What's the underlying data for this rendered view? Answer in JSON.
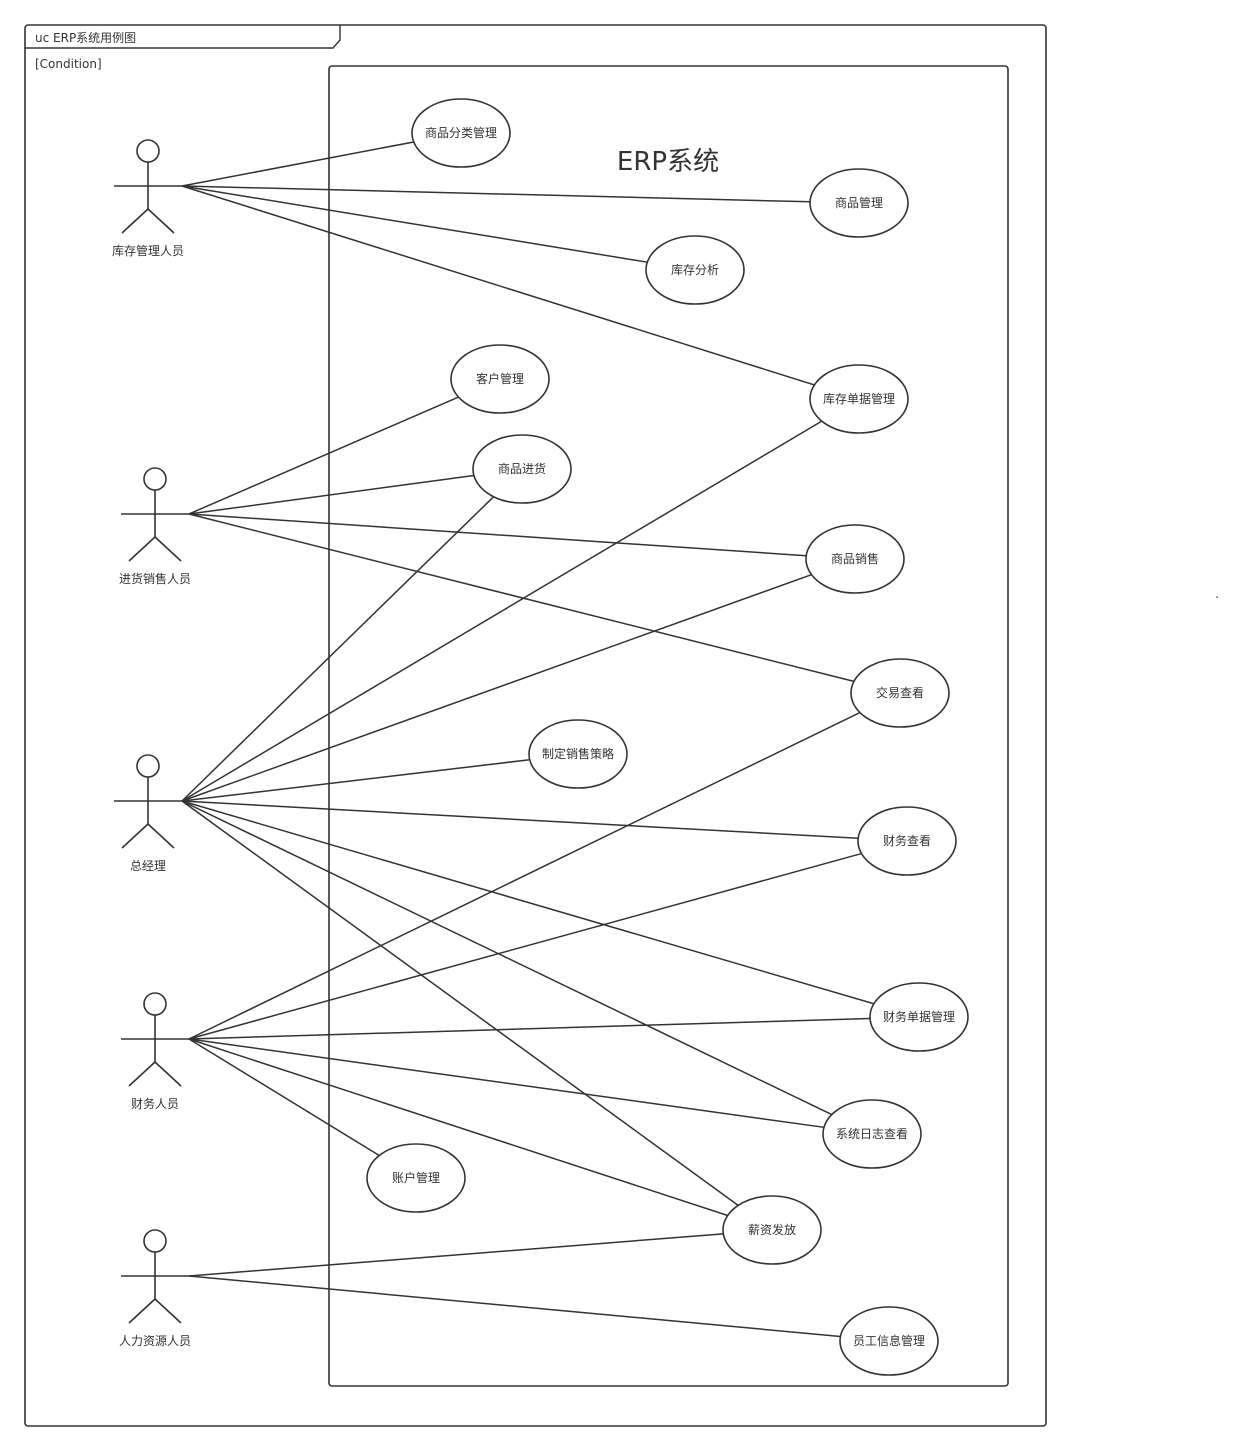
{
  "diagram": {
    "frame_label": "uc ERP系统用例图",
    "condition": "[Condition]",
    "system_title": "ERP系统",
    "stray_mark": "."
  },
  "actors": [
    {
      "id": "inventory_manager",
      "label": "库存管理人员"
    },
    {
      "id": "purchase_sales",
      "label": "进货销售人员"
    },
    {
      "id": "general_manager",
      "label": "总经理"
    },
    {
      "id": "finance",
      "label": "财务人员"
    },
    {
      "id": "hr",
      "label": "人力资源人员"
    }
  ],
  "use_cases": [
    {
      "id": "category_mgmt",
      "label": "商品分类管理"
    },
    {
      "id": "product_mgmt",
      "label": "商品管理"
    },
    {
      "id": "inventory_analysis",
      "label": "库存分析"
    },
    {
      "id": "customer_mgmt",
      "label": "客户管理"
    },
    {
      "id": "inventory_doc_mgmt",
      "label": "库存单据管理"
    },
    {
      "id": "purchase",
      "label": "商品进货"
    },
    {
      "id": "sales",
      "label": "商品销售"
    },
    {
      "id": "transaction_view",
      "label": "交易查看"
    },
    {
      "id": "sales_strategy",
      "label": "制定销售策略"
    },
    {
      "id": "finance_view",
      "label": "财务查看"
    },
    {
      "id": "finance_doc_mgmt",
      "label": "财务单据管理"
    },
    {
      "id": "system_log_view",
      "label": "系统日志查看"
    },
    {
      "id": "account_mgmt",
      "label": "账户管理"
    },
    {
      "id": "salary_payment",
      "label": "薪资发放"
    },
    {
      "id": "employee_info_mgmt",
      "label": "员工信息管理"
    }
  ],
  "associations": [
    {
      "actor": "inventory_manager",
      "use_case": "category_mgmt"
    },
    {
      "actor": "inventory_manager",
      "use_case": "product_mgmt"
    },
    {
      "actor": "inventory_manager",
      "use_case": "inventory_analysis"
    },
    {
      "actor": "inventory_manager",
      "use_case": "inventory_doc_mgmt"
    },
    {
      "actor": "purchase_sales",
      "use_case": "customer_mgmt"
    },
    {
      "actor": "purchase_sales",
      "use_case": "purchase"
    },
    {
      "actor": "purchase_sales",
      "use_case": "sales"
    },
    {
      "actor": "purchase_sales",
      "use_case": "transaction_view"
    },
    {
      "actor": "general_manager",
      "use_case": "purchase"
    },
    {
      "actor": "general_manager",
      "use_case": "inventory_doc_mgmt"
    },
    {
      "actor": "general_manager",
      "use_case": "sales"
    },
    {
      "actor": "general_manager",
      "use_case": "sales_strategy"
    },
    {
      "actor": "general_manager",
      "use_case": "finance_view"
    },
    {
      "actor": "general_manager",
      "use_case": "finance_doc_mgmt"
    },
    {
      "actor": "general_manager",
      "use_case": "system_log_view"
    },
    {
      "actor": "general_manager",
      "use_case": "salary_payment"
    },
    {
      "actor": "finance",
      "use_case": "transaction_view"
    },
    {
      "actor": "finance",
      "use_case": "finance_view"
    },
    {
      "actor": "finance",
      "use_case": "finance_doc_mgmt"
    },
    {
      "actor": "finance",
      "use_case": "system_log_view"
    },
    {
      "actor": "finance",
      "use_case": "salary_payment"
    },
    {
      "actor": "finance",
      "use_case": "account_mgmt"
    },
    {
      "actor": "hr",
      "use_case": "salary_payment"
    },
    {
      "actor": "hr",
      "use_case": "employee_info_mgmt"
    }
  ]
}
